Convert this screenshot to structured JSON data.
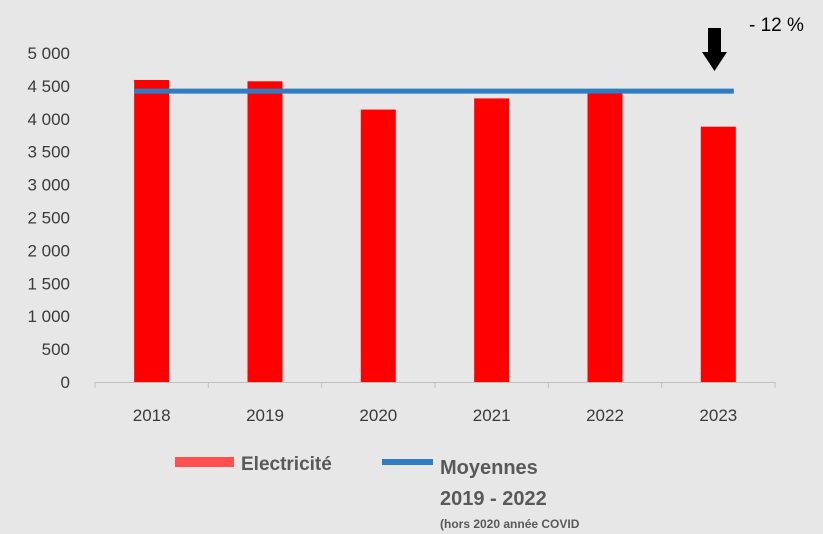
{
  "chart_data": {
    "type": "bar",
    "categories": [
      "2018",
      "2019",
      "2020",
      "2021",
      "2022",
      "2023"
    ],
    "series": [
      {
        "name": "Electricité",
        "values": [
          4590,
          4570,
          4140,
          4310,
          4420,
          3880
        ],
        "color": "#ff0000"
      }
    ],
    "reference_line": {
      "name": "Moyennes 2019 - 2022 (hors 2020 année COVID",
      "value": 4420,
      "color": "#2e7cc2"
    },
    "ylim": [
      0,
      5000
    ],
    "yticks": [
      0,
      500,
      1000,
      1500,
      2000,
      2500,
      3000,
      3500,
      4000,
      4500,
      5000
    ],
    "ytick_labels": [
      "0",
      "500",
      "1 000",
      "1 500",
      "2 000",
      "2 500",
      "3 000",
      "3 500",
      "4 000",
      "4 500",
      "5 000"
    ],
    "grid": false,
    "legend_placement": "bottom",
    "annotation": {
      "text": "- 12 %",
      "category": "2023",
      "icon": "down-arrow-icon"
    }
  },
  "legend": {
    "bar_label": "Electricité",
    "line_label_1": "Moyennes",
    "line_label_2": "2019 - 2022",
    "line_label_3": "(hors 2020 année COVID"
  }
}
